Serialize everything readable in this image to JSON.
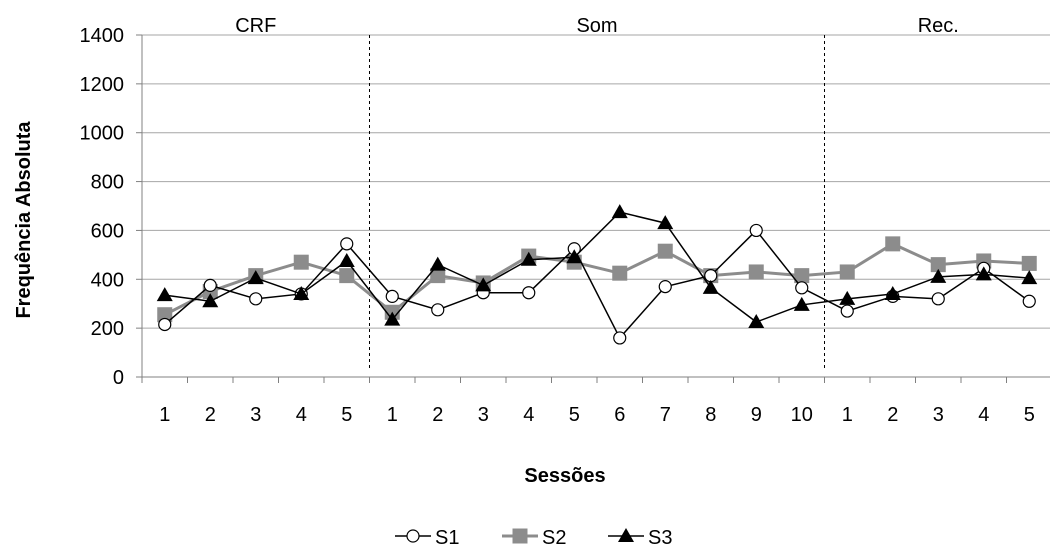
{
  "chart_data": {
    "type": "line",
    "xlabel": "Sessões",
    "ylabel": "Frequência Absoluta",
    "ylim": [
      0,
      1400
    ],
    "yticks": [
      0,
      200,
      400,
      600,
      800,
      1000,
      1200,
      1400
    ],
    "grid": true,
    "legend_position": "bottom",
    "categories": [
      "1",
      "2",
      "3",
      "4",
      "5",
      "1",
      "2",
      "3",
      "4",
      "5",
      "6",
      "7",
      "8",
      "9",
      "10",
      "1",
      "2",
      "3",
      "4",
      "5"
    ],
    "phases": [
      {
        "name": "CRF",
        "sessions": 5
      },
      {
        "name": "Som",
        "sessions": 10
      },
      {
        "name": "Rec.",
        "sessions": 5
      }
    ],
    "series": [
      {
        "name": "S1",
        "marker": "open-circle",
        "color": "#000000",
        "values": [
          215,
          375,
          320,
          340,
          545,
          330,
          275,
          345,
          345,
          525,
          160,
          370,
          415,
          600,
          365,
          270,
          330,
          320,
          445,
          310
        ]
      },
      {
        "name": "S2",
        "marker": "square",
        "color": "#8c8c8c",
        "values": [
          255,
          350,
          415,
          470,
          415,
          265,
          415,
          385,
          495,
          470,
          425,
          515,
          415,
          430,
          415,
          430,
          545,
          460,
          475,
          465
        ]
      },
      {
        "name": "S3",
        "marker": "triangle",
        "color": "#000000",
        "values": [
          335,
          310,
          405,
          340,
          475,
          235,
          460,
          375,
          480,
          490,
          675,
          630,
          365,
          225,
          295,
          320,
          340,
          410,
          420,
          405
        ]
      }
    ]
  }
}
